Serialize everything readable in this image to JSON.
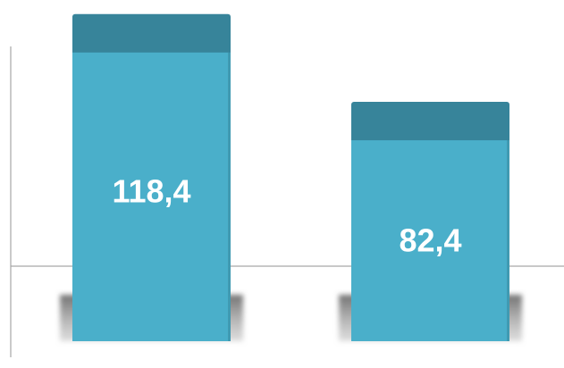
{
  "chart_data": {
    "type": "bar",
    "categories": [
      "",
      ""
    ],
    "values": [
      118.4,
      82.4
    ],
    "value_labels": [
      "118,4",
      "82,4"
    ],
    "title": "",
    "xlabel": "",
    "ylabel": "",
    "grid": false,
    "legend": "none",
    "colors": {
      "bar_front": "#4aafca",
      "bar_top": "#37849a",
      "bar_edge": "#2f7487",
      "shadow": "#8e8e8e",
      "axis": "#a6a6a6",
      "label": "#ffffff"
    }
  }
}
